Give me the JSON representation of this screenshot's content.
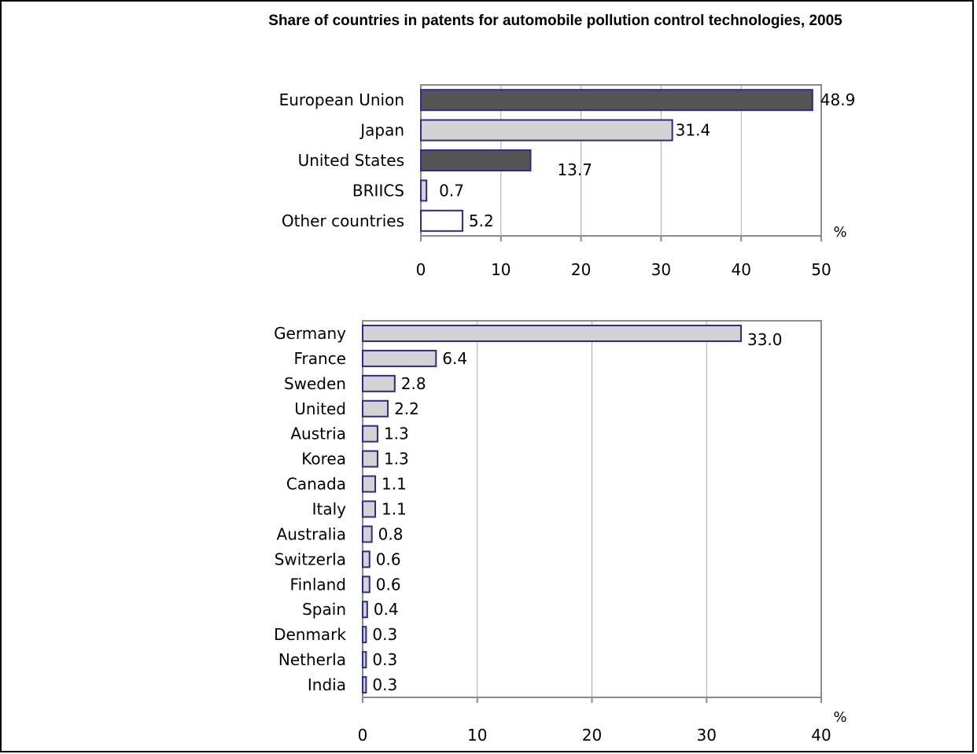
{
  "title": "Share of countries in patents for automobile pollution control technologies, 2005",
  "colors": {
    "dark": "#555555",
    "light": "#d3d3d3",
    "white": "#ffffff",
    "outline": "#2b2b8c",
    "grid": "#aaaaaa",
    "axis": "#8c8c8c"
  },
  "chart_data": [
    {
      "type": "bar",
      "orientation": "horizontal",
      "categories": [
        "European Union",
        "Japan",
        "United States",
        "BRIICS",
        "Other countries"
      ],
      "values": [
        48.9,
        31.4,
        13.7,
        0.7,
        5.2
      ],
      "value_labels": [
        "48.9",
        "31.4",
        "13.7",
        "0.7",
        "5.2"
      ],
      "bar_colors": [
        "dark",
        "light",
        "dark",
        "light",
        "white"
      ],
      "xlim": [
        0,
        50
      ],
      "xticks": [
        "0",
        "10",
        "20",
        "30",
        "40",
        "50"
      ],
      "unit": "%",
      "grid": true
    },
    {
      "type": "bar",
      "orientation": "horizontal",
      "categories": [
        "Germany",
        "France",
        "Sweden",
        "United",
        "Austria",
        "Korea",
        "Canada",
        "Italy",
        "Australia",
        "Switzerla",
        "Finland",
        "Spain",
        "Denmark",
        "Netherla",
        "India"
      ],
      "values": [
        33.0,
        6.4,
        2.8,
        2.2,
        1.3,
        1.3,
        1.1,
        1.1,
        0.8,
        0.6,
        0.6,
        0.4,
        0.3,
        0.3,
        0.3
      ],
      "value_labels": [
        "33.0",
        "6.4",
        "2.8",
        "2.2",
        "1.3",
        "1.3",
        "1.1",
        "1.1",
        "0.8",
        "0.6",
        "0.6",
        "0.4",
        "0.3",
        "0.3",
        "0.3"
      ],
      "bar_colors": [
        "light",
        "light",
        "light",
        "light",
        "light",
        "light",
        "light",
        "light",
        "light",
        "light",
        "light",
        "light",
        "light",
        "light",
        "light"
      ],
      "xlim": [
        0,
        40
      ],
      "xticks": [
        "0",
        "10",
        "20",
        "30",
        "40"
      ],
      "unit": "%",
      "grid": true
    }
  ]
}
